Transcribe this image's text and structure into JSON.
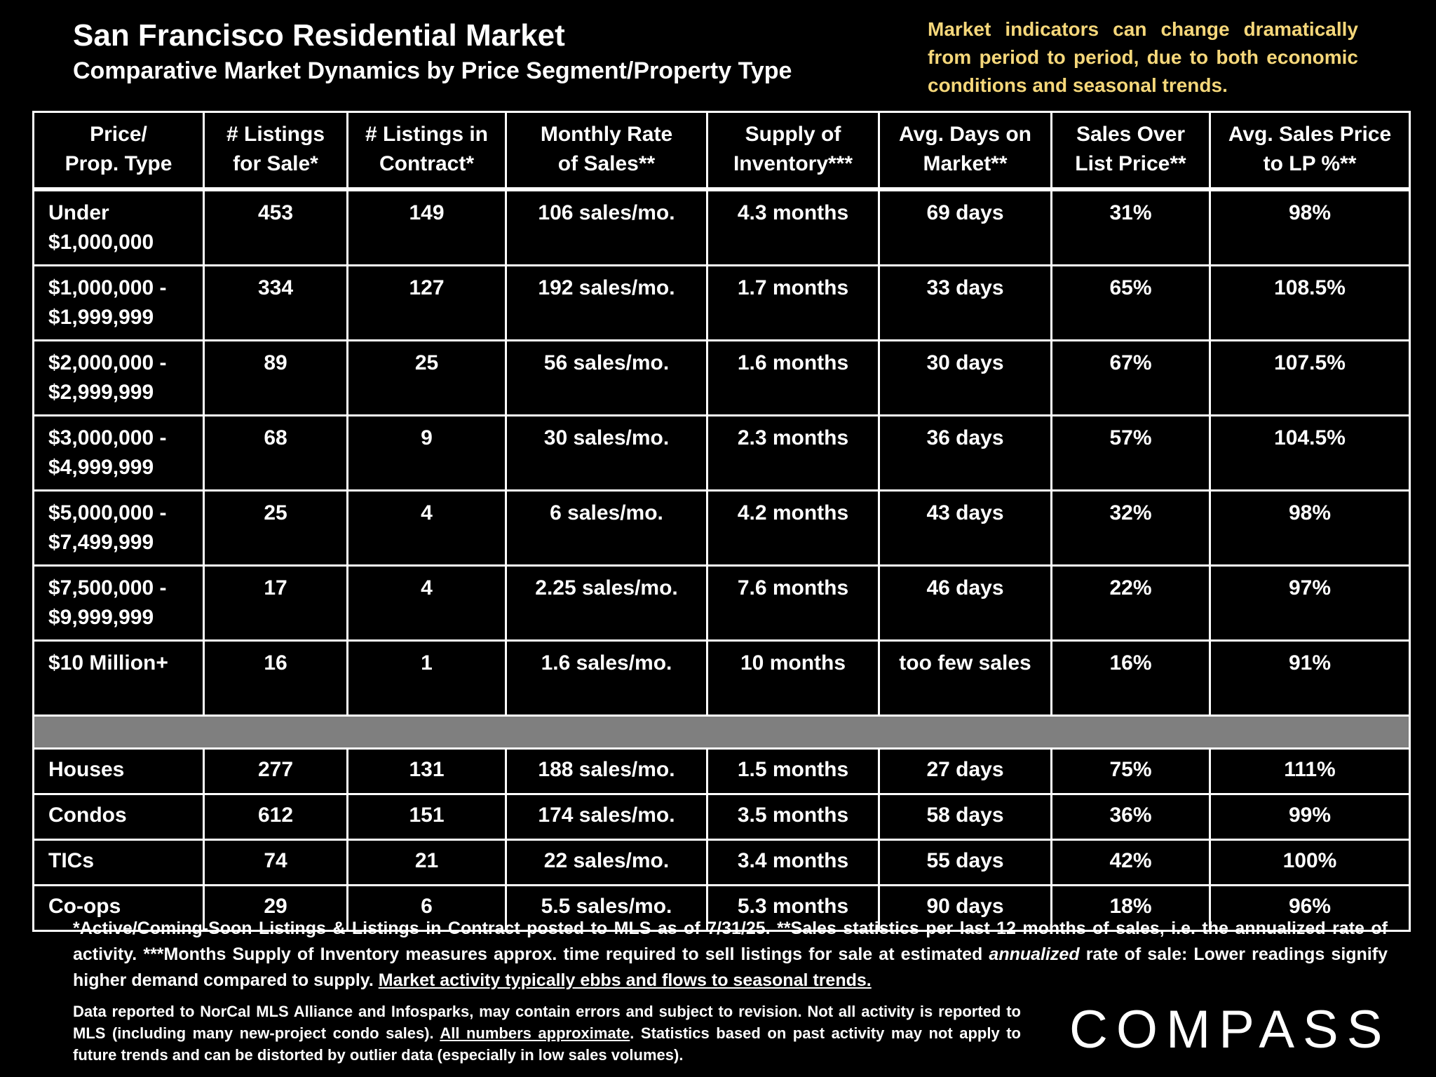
{
  "header": {
    "title": "San Francisco Residential Market",
    "subtitle": "Comparative Market Dynamics by Price Segment/Property Type",
    "note": "Market indicators can change dramatically from period to period, due to both economic conditions and seasonal trends."
  },
  "table": {
    "columns": [
      "Price/\nProp. Type",
      "# Listings\nfor Sale*",
      "# Listings in\nContract*",
      "Monthly Rate\nof Sales**",
      "Supply of\nInventory***",
      "Avg. Days on\nMarket**",
      "Sales Over\nList Price**",
      "Avg. Sales Price\nto LP %**"
    ],
    "segments": [
      [
        "Under\n$1,000,000",
        "453",
        "149",
        "106 sales/mo.",
        "4.3 months",
        "69 days",
        "31%",
        "98%"
      ],
      [
        "$1,000,000 -\n$1,999,999",
        "334",
        "127",
        "192 sales/mo.",
        "1.7 months",
        "33 days",
        "65%",
        "108.5%"
      ],
      [
        "$2,000,000 -\n$2,999,999",
        "89",
        "25",
        "56 sales/mo.",
        "1.6 months",
        "30 days",
        "67%",
        "107.5%"
      ],
      [
        "$3,000,000 -\n$4,999,999",
        "68",
        "9",
        "30 sales/mo.",
        "2.3 months",
        "36 days",
        "57%",
        "104.5%"
      ],
      [
        "$5,000,000 -\n$7,499,999",
        "25",
        "4",
        "6 sales/mo.",
        "4.2 months",
        "43 days",
        "32%",
        "98%"
      ],
      [
        "$7,500,000 -\n$9,999,999",
        "17",
        "4",
        "2.25 sales/mo.",
        "7.6 months",
        "46 days",
        "22%",
        "97%"
      ],
      [
        "$10 Million+",
        "16",
        "1",
        "1.6 sales/mo.",
        "10 months",
        "too few sales",
        "16%",
        "91%"
      ]
    ],
    "types": [
      [
        "Houses",
        "277",
        "131",
        "188 sales/mo.",
        "1.5 months",
        "27 days",
        "75%",
        "111%"
      ],
      [
        "Condos",
        "612",
        "151",
        "174 sales/mo.",
        "3.5 months",
        "58 days",
        "36%",
        "99%"
      ],
      [
        "TICs",
        "74",
        "21",
        "22 sales/mo.",
        "3.4 months",
        "55 days",
        "42%",
        "100%"
      ],
      [
        "Co-ops",
        "29",
        "6",
        "5.5 sales/mo.",
        "5.3 months",
        "90 days",
        "18%",
        "96%"
      ]
    ]
  },
  "footnote": [
    "*Active/Coming-Soon Listings & Listings in Contract posted to MLS as of 7/31/25. **Sales statistics per last 12 months of sales, i.e. the annualized rate of activity.  ***Months Supply of Inventory measures approx. time required to sell listings for sale at estimated ",
    "annualized",
    " rate of sale:  Lower readings signify higher demand compared to supply. ",
    "Market activity typically ebbs and flows to seasonal trends."
  ],
  "disclaimer": [
    "Data reported to NorCal MLS Alliance and Infosparks, may contain errors and subject to revision.  Not all activity is reported to MLS (including many new-project condo sales). ",
    "All numbers approximate",
    ". Statistics based on past activity may not apply to future trends and can be distorted by outlier data (especially in low sales volumes)."
  ],
  "logo": "COMPASS"
}
